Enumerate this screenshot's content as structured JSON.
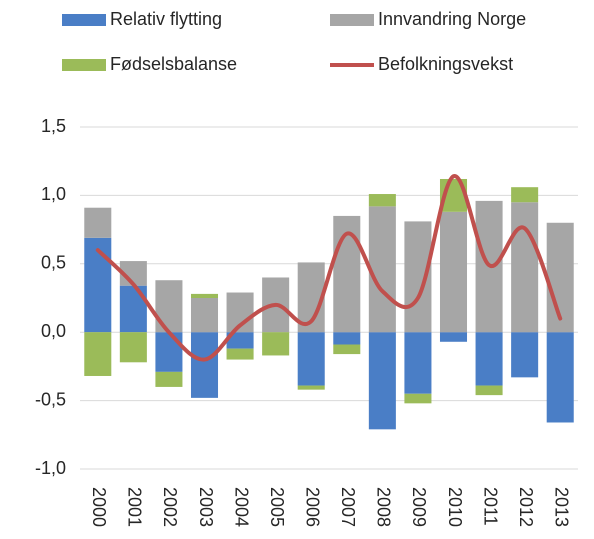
{
  "chart_data": {
    "type": "stacked_bar_line",
    "categories": [
      "2000",
      "2001",
      "2002",
      "2003",
      "2004",
      "2005",
      "2006",
      "2007",
      "2008",
      "2009",
      "2010",
      "2011",
      "2012",
      "2013"
    ],
    "series": [
      {
        "name": "Relativ flytting",
        "color": "#4a7ec6",
        "values": [
          0.69,
          0.34,
          -0.29,
          -0.48,
          -0.12,
          0,
          -0.39,
          -0.09,
          -0.71,
          -0.45,
          -0.07,
          -0.39,
          -0.33,
          -0.66
        ]
      },
      {
        "name": "Innvandring Norge",
        "color": "#a6a6a6",
        "values": [
          0.22,
          0.18,
          0.38,
          0.25,
          0.29,
          0.4,
          0.51,
          0.85,
          0.92,
          0.81,
          0.88,
          0.96,
          0.95,
          0.8
        ]
      },
      {
        "name": "Fødselsbalanse",
        "color": "#9bbb59",
        "values": [
          -0.32,
          -0.22,
          -0.11,
          0.03,
          -0.08,
          -0.17,
          -0.03,
          -0.07,
          0.09,
          -0.07,
          0.24,
          -0.07,
          0.11,
          0
        ]
      },
      {
        "name": "Befolkningsvekst",
        "color": "#c0504d",
        "type": "line",
        "values": [
          0.6,
          0.35,
          0.0,
          -0.2,
          0.05,
          0.2,
          0.08,
          0.72,
          0.3,
          0.25,
          1.14,
          0.49,
          0.76,
          0.1
        ]
      }
    ],
    "ylim": [
      -1,
      1.5
    ],
    "yticks": [
      {
        "value": -1,
        "label": "-1,0"
      },
      {
        "value": -0.5,
        "label": "-0,5"
      },
      {
        "value": 0,
        "label": "0,0"
      },
      {
        "value": 0.5,
        "label": "0,5"
      },
      {
        "value": 1,
        "label": "1,0"
      },
      {
        "value": 1.5,
        "label": "1,5"
      }
    ],
    "grid": true,
    "legend": "top"
  }
}
